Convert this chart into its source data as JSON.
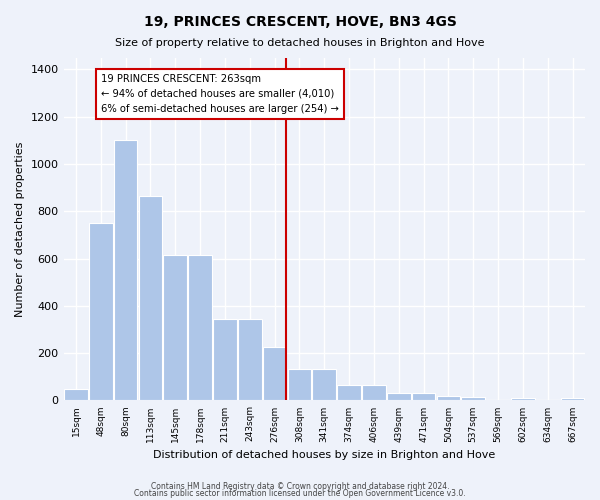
{
  "title": "19, PRINCES CRESCENT, HOVE, BN3 4GS",
  "subtitle": "Size of property relative to detached houses in Brighton and Hove",
  "xlabel": "Distribution of detached houses by size in Brighton and Hove",
  "ylabel": "Number of detached properties",
  "footer1": "Contains HM Land Registry data © Crown copyright and database right 2024.",
  "footer2": "Contains public sector information licensed under the Open Government Licence v3.0.",
  "bin_labels": [
    "15sqm",
    "48sqm",
    "80sqm",
    "113sqm",
    "145sqm",
    "178sqm",
    "211sqm",
    "243sqm",
    "276sqm",
    "308sqm",
    "341sqm",
    "374sqm",
    "406sqm",
    "439sqm",
    "471sqm",
    "504sqm",
    "537sqm",
    "569sqm",
    "602sqm",
    "634sqm",
    "667sqm"
  ],
  "bar_values": [
    48,
    750,
    1100,
    863,
    615,
    615,
    345,
    345,
    225,
    135,
    135,
    65,
    65,
    30,
    30,
    20,
    15,
    0,
    10,
    0,
    10
  ],
  "bar_color": "#aec6e8",
  "vline_color": "#cc0000",
  "annotation_title": "19 PRINCES CRESCENT: 263sqm",
  "annotation_line1": "← 94% of detached houses are smaller (4,010)",
  "annotation_line2": "6% of semi-detached houses are larger (254) →",
  "annotation_box_color": "#cc0000",
  "ylim": [
    0,
    1450
  ],
  "yticks": [
    0,
    200,
    400,
    600,
    800,
    1000,
    1200,
    1400
  ],
  "bg_color": "#eef2fa",
  "grid_color": "#ffffff",
  "vline_bar_index": 8
}
